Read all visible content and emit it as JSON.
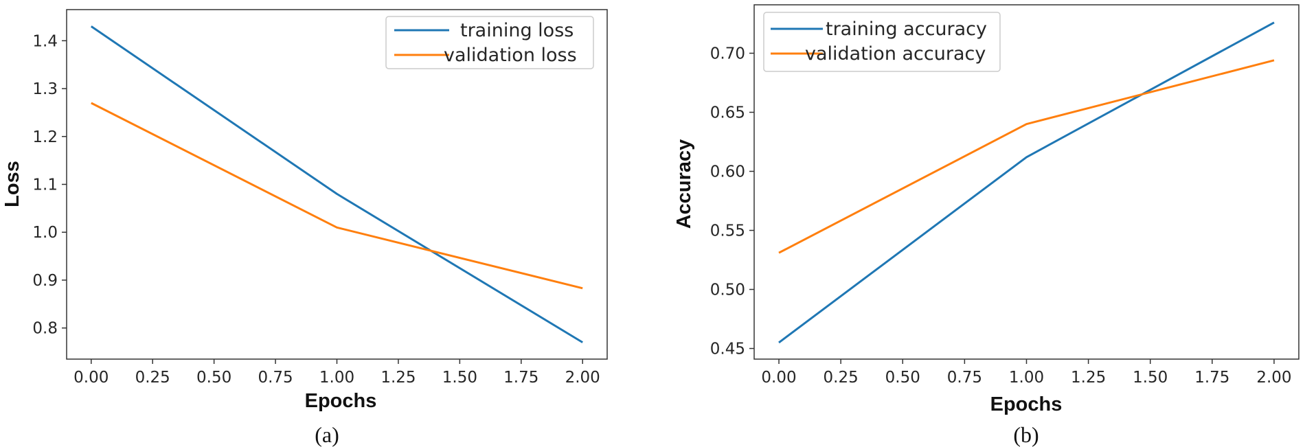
{
  "colors": {
    "series_1": "#1f77b4",
    "series_2": "#ff7f0e"
  },
  "chart_data": [
    {
      "type": "line",
      "caption": "(a)",
      "xlabel": "Epochs",
      "ylabel": "Loss",
      "xlim": [
        -0.1,
        2.1
      ],
      "ylim": [
        0.735,
        1.465
      ],
      "xticks": [
        "0.00",
        "0.25",
        "0.50",
        "0.75",
        "1.00",
        "1.25",
        "1.50",
        "1.75",
        "2.00"
      ],
      "yticks": [
        "0.8",
        "0.9",
        "1.0",
        "1.1",
        "1.2",
        "1.3",
        "1.4"
      ],
      "x": [
        0,
        1,
        2
      ],
      "legend_position": "top-right",
      "series": [
        {
          "name": "training loss",
          "values": [
            1.43,
            1.08,
            0.77
          ]
        },
        {
          "name": "validation loss",
          "values": [
            1.27,
            1.01,
            0.883
          ]
        }
      ]
    },
    {
      "type": "line",
      "caption": "(b)",
      "xlabel": "Epochs",
      "ylabel": "Accuracy",
      "xlim": [
        -0.1,
        2.1
      ],
      "ylim": [
        0.441,
        0.741
      ],
      "xticks": [
        "0.00",
        "0.25",
        "0.50",
        "0.75",
        "1.00",
        "1.25",
        "1.50",
        "1.75",
        "2.00"
      ],
      "yticks": [
        "0.45",
        "0.50",
        "0.55",
        "0.60",
        "0.65",
        "0.70"
      ],
      "x": [
        0,
        1,
        2
      ],
      "legend_position": "top-left",
      "series": [
        {
          "name": "training accuracy",
          "values": [
            0.455,
            0.612,
            0.726
          ]
        },
        {
          "name": "validation accuracy",
          "values": [
            0.531,
            0.64,
            0.694
          ]
        }
      ]
    }
  ]
}
